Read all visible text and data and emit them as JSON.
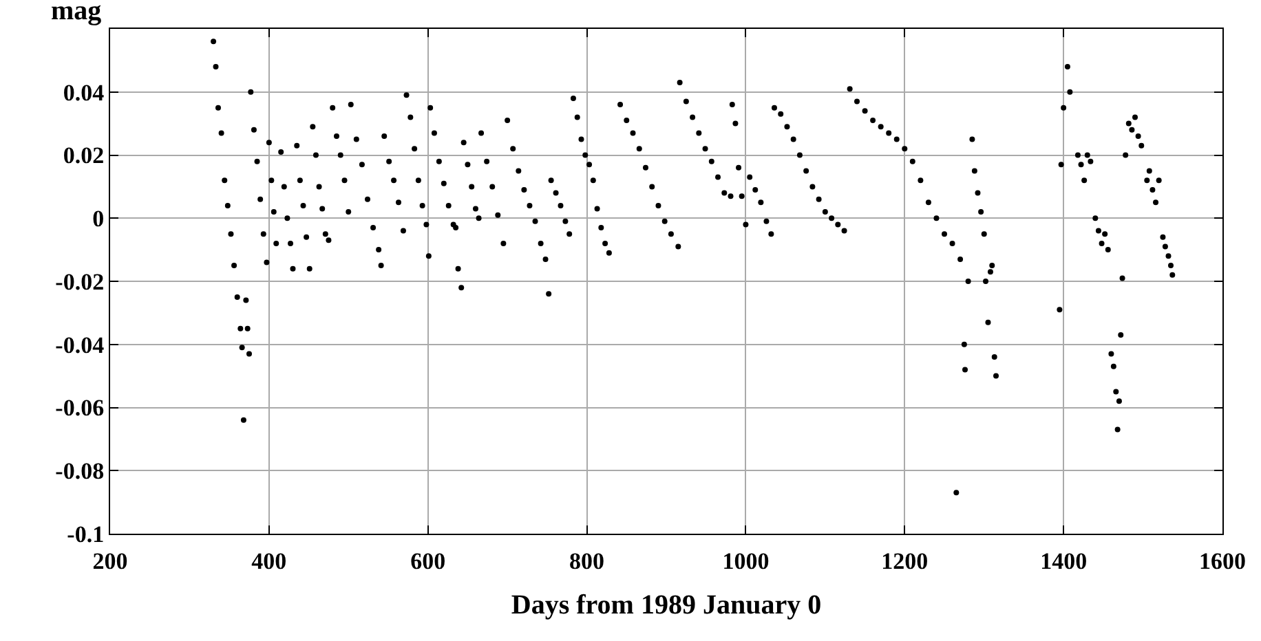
{
  "chart_data": {
    "type": "scatter",
    "xlabel": "Days from 1989 January 0",
    "ylabel": "mag",
    "xlim": [
      200,
      1600
    ],
    "ylim": [
      -0.1,
      0.06
    ],
    "xticks": [
      200,
      400,
      600,
      800,
      1000,
      1200,
      1400,
      1600
    ],
    "yticks": [
      -0.1,
      -0.08,
      -0.06,
      -0.04,
      -0.02,
      0,
      0.02,
      0.04
    ],
    "grid": true,
    "marker": "circle",
    "series": [
      {
        "color": "#000000",
        "x": [
          330,
          333,
          336,
          340,
          344,
          348,
          352,
          356,
          360,
          364,
          366,
          368,
          371,
          373,
          375,
          377,
          381,
          385,
          389,
          393,
          397,
          400,
          403,
          406,
          409,
          415,
          419,
          423,
          427,
          430,
          435,
          439,
          443,
          447,
          451,
          455,
          459,
          463,
          467,
          471,
          475,
          480,
          485,
          490,
          495,
          500,
          503,
          510,
          517,
          524,
          531,
          538,
          541,
          545,
          551,
          557,
          563,
          569,
          573,
          578,
          583,
          588,
          593,
          598,
          601,
          603,
          608,
          614,
          620,
          626,
          632,
          635,
          638,
          642,
          645,
          650,
          655,
          660,
          664,
          667,
          674,
          681,
          688,
          695,
          700,
          707,
          714,
          721,
          728,
          735,
          742,
          748,
          752,
          755,
          761,
          767,
          773,
          778,
          783,
          788,
          793,
          798,
          803,
          808,
          813,
          818,
          823,
          828,
          842,
          850,
          858,
          866,
          874,
          882,
          890,
          898,
          906,
          915,
          917,
          925,
          933,
          941,
          949,
          957,
          965,
          973,
          981,
          983,
          987,
          991,
          995,
          1000,
          1005,
          1012,
          1019,
          1026,
          1032,
          1036,
          1044,
          1052,
          1060,
          1068,
          1076,
          1084,
          1092,
          1100,
          1108,
          1116,
          1124,
          1131,
          1140,
          1150,
          1160,
          1170,
          1180,
          1190,
          1200,
          1210,
          1220,
          1230,
          1240,
          1250,
          1260,
          1265,
          1270,
          1275,
          1276,
          1280,
          1285,
          1288,
          1292,
          1296,
          1300,
          1302,
          1305,
          1308,
          1310,
          1313,
          1315,
          1395,
          1397,
          1400,
          1405,
          1408,
          1418,
          1422,
          1426,
          1430,
          1434,
          1440,
          1444,
          1448,
          1452,
          1456,
          1460,
          1463,
          1466,
          1468,
          1470,
          1472,
          1474,
          1478,
          1482,
          1486,
          1490,
          1494,
          1498,
          1505,
          1508,
          1512,
          1516,
          1520,
          1525,
          1528,
          1532,
          1535,
          1537
        ],
        "values": [
          0.056,
          0.048,
          0.035,
          0.027,
          0.012,
          0.004,
          -0.005,
          -0.015,
          -0.025,
          -0.035,
          -0.041,
          -0.064,
          -0.026,
          -0.035,
          -0.043,
          0.04,
          0.028,
          0.018,
          0.006,
          -0.005,
          -0.014,
          0.024,
          0.012,
          0.002,
          -0.008,
          0.021,
          0.01,
          0.0,
          -0.008,
          -0.016,
          0.023,
          0.012,
          0.004,
          -0.006,
          -0.016,
          0.029,
          0.02,
          0.01,
          0.003,
          -0.005,
          -0.007,
          0.035,
          0.026,
          0.02,
          0.012,
          0.002,
          0.036,
          0.025,
          0.017,
          0.006,
          -0.003,
          -0.01,
          -0.015,
          0.026,
          0.018,
          0.012,
          0.005,
          -0.004,
          0.039,
          0.032,
          0.022,
          0.012,
          0.004,
          -0.002,
          -0.012,
          0.035,
          0.027,
          0.018,
          0.011,
          0.004,
          -0.002,
          -0.003,
          -0.016,
          -0.022,
          0.024,
          0.017,
          0.01,
          0.003,
          0.0,
          0.027,
          0.018,
          0.01,
          0.001,
          -0.008,
          0.031,
          0.022,
          0.015,
          0.009,
          0.004,
          -0.001,
          -0.008,
          -0.013,
          -0.024,
          0.012,
          0.008,
          0.004,
          -0.001,
          -0.005,
          0.038,
          0.032,
          0.025,
          0.02,
          0.017,
          0.012,
          0.003,
          -0.003,
          -0.008,
          -0.011,
          0.036,
          0.031,
          0.027,
          0.022,
          0.016,
          0.01,
          0.004,
          -0.001,
          -0.005,
          -0.009,
          0.043,
          0.037,
          0.032,
          0.027,
          0.022,
          0.018,
          0.013,
          0.008,
          0.007,
          0.036,
          0.03,
          0.016,
          0.007,
          -0.002,
          0.013,
          0.009,
          0.005,
          -0.001,
          -0.005,
          0.035,
          0.033,
          0.029,
          0.025,
          0.02,
          0.015,
          0.01,
          0.006,
          0.002,
          0.0,
          -0.002,
          -0.004,
          0.041,
          0.037,
          0.034,
          0.031,
          0.029,
          0.027,
          0.025,
          0.022,
          0.018,
          0.012,
          0.005,
          0.0,
          -0.005,
          -0.008,
          -0.087,
          -0.013,
          -0.04,
          -0.048,
          -0.02,
          0.025,
          0.015,
          0.008,
          0.002,
          -0.005,
          -0.02,
          -0.033,
          -0.017,
          -0.015,
          -0.044,
          -0.05,
          -0.029,
          0.017,
          0.035,
          0.048,
          0.04,
          0.02,
          0.017,
          0.012,
          0.02,
          0.018,
          0.0,
          -0.004,
          -0.008,
          -0.005,
          -0.01,
          -0.043,
          -0.047,
          -0.055,
          -0.067,
          -0.058,
          -0.037,
          -0.019,
          0.02,
          0.03,
          0.028,
          0.032,
          0.026,
          0.023,
          0.012,
          0.015,
          0.009,
          0.005,
          0.012,
          -0.006,
          -0.009,
          -0.012,
          -0.015,
          -0.018
        ]
      }
    ]
  }
}
